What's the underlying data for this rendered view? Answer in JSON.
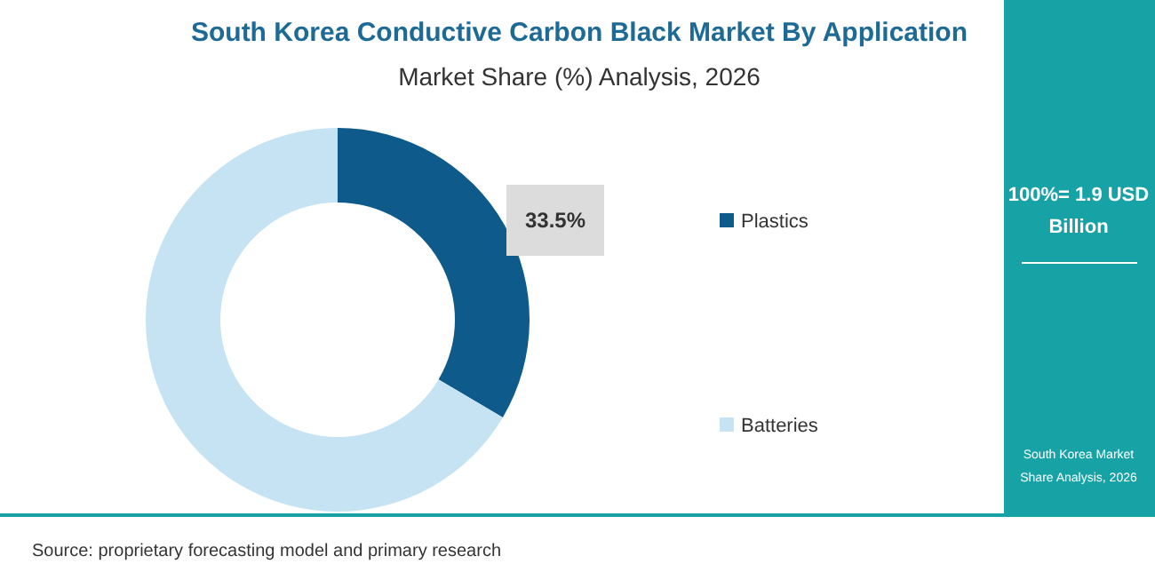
{
  "chart_data": {
    "type": "donut",
    "title": "South Korea Conductive Carbon Black Market By Application",
    "subtitle": "Market Share (%) Analysis, 2026",
    "categories": [
      "Plastics",
      "Batteries"
    ],
    "values": [
      33.5,
      66.5
    ],
    "colors": [
      "#0d5a8b",
      "#c6e3f3"
    ],
    "value_labels": [
      "33.5%",
      null
    ],
    "legend": "right",
    "annotations": [
      "100%= 1.9 USD Billion",
      "South Korea Market Share Analysis, 2026",
      "Source: proprietary forecasting model and primary research"
    ]
  }
}
